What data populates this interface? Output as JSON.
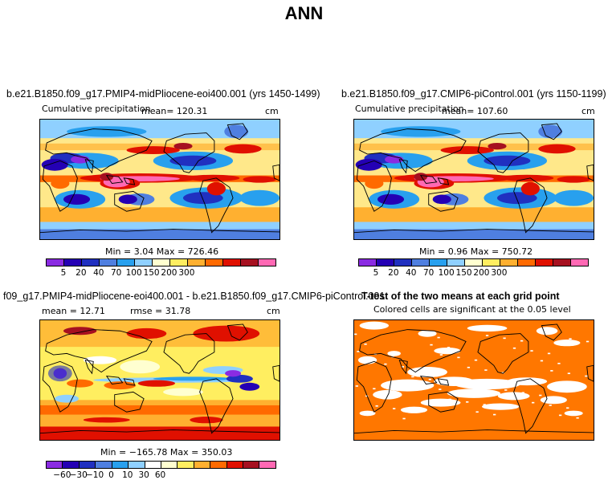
{
  "page": {
    "title": "ANN"
  },
  "panel_test": {
    "title": "b.e21.B1850.f09_g17.PMIP4-midPliocene-eoi400.001 (yrs 1450-1499)",
    "variable": "Cumulative precipitation",
    "mean": "mean= 120.31",
    "units": "cm",
    "minmax": "Min =    3.04  Max = 726.46"
  },
  "panel_ctrl": {
    "title": "b.e21.B1850.f09_g17.CMIP6-piControl.001 (yrs 1150-1199)",
    "variable": "Cumulative precipitation",
    "mean": "mean= 107.60",
    "units": "cm",
    "minmax": "Min =    0.96  Max = 750.72"
  },
  "panel_diff": {
    "title": "f09_g17.PMIP4-midPliocene-eoi400.001 - b.e21.B1850.f09_g17.CMIP6-piControl.001",
    "mean": "mean =   12.71",
    "rmse": "rmse =   31.78",
    "units": "cm",
    "minmax": "Min = −165.78  Max = 350.03"
  },
  "panel_ttest": {
    "title": "T-test of the two means at each grid point",
    "subtitle": "Colored cells are significant at the 0.05 level",
    "color": "#ff7700"
  },
  "colorbar_precip": {
    "colors": [
      "#8a2be2",
      "#2400b4",
      "#2030c0",
      "#4f7fe0",
      "#28a0ee",
      "#8fd0ff",
      "#ffffd0",
      "#ffee60",
      "#ffb030",
      "#ff6a00",
      "#e01000",
      "#a61020",
      "#ff69b4"
    ],
    "ticks": [
      "5",
      "20",
      "40",
      "70",
      "100",
      "150",
      "200",
      "300"
    ]
  },
  "colorbar_diff": {
    "colors": [
      "#8a2be2",
      "#2400b4",
      "#2030c0",
      "#4f7fe0",
      "#28a0ee",
      "#8fd0ff",
      "#ffffff",
      "#ffffd0",
      "#ffee60",
      "#ffb030",
      "#ff6a00",
      "#e01000",
      "#a61020",
      "#ff69b4"
    ],
    "ticks": [
      "−60",
      "−30",
      "−10",
      "0",
      "10",
      "30",
      "60"
    ]
  }
}
